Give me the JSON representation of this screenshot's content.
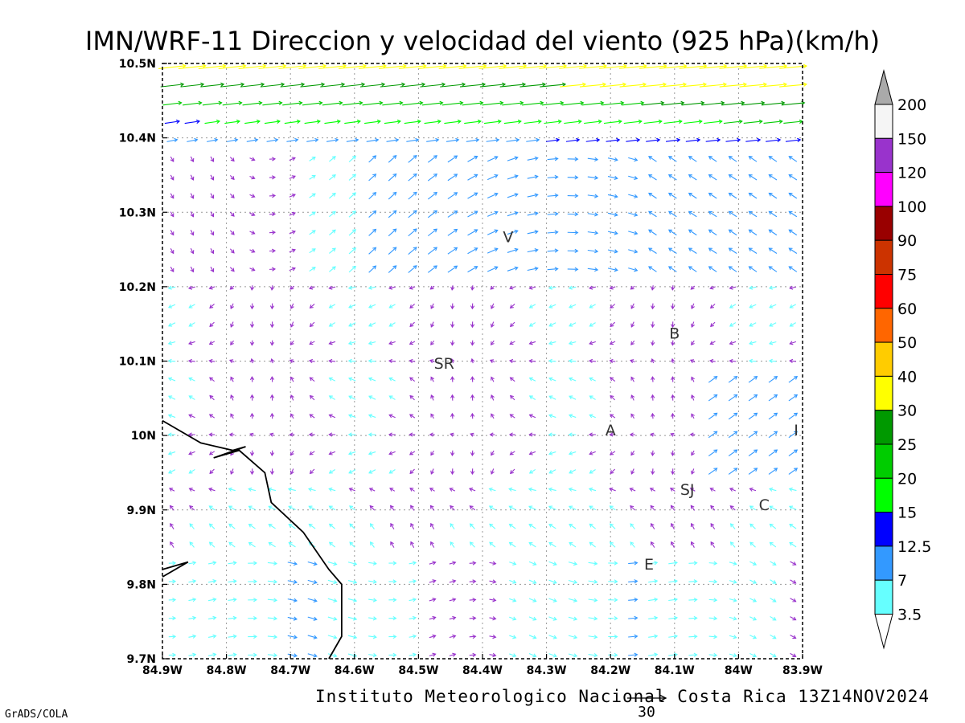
{
  "title": "IMN/WRF-11 Direccion y velocidad del viento (925 hPa)(km/h)",
  "footer": {
    "institution": "Instituto Meteorologico Nacional Costa Rica 13Z14NOV2024",
    "reference_vector_label": "30",
    "software": "GrADS/COLA"
  },
  "axes": {
    "x_ticks": [
      "84.9W",
      "84.8W",
      "84.7W",
      "84.6W",
      "84.5W",
      "84.4W",
      "84.3W",
      "84.2W",
      "84.1W",
      "84W",
      "83.9W"
    ],
    "x_values": [
      -84.9,
      -84.8,
      -84.7,
      -84.6,
      -84.5,
      -84.4,
      -84.3,
      -84.2,
      -84.1,
      -84.0,
      -83.9
    ],
    "y_ticks": [
      "9.7N",
      "9.8N",
      "9.9N",
      "10N",
      "10.1N",
      "10.2N",
      "10.3N",
      "10.4N",
      "10.5N"
    ],
    "y_values": [
      9.7,
      9.8,
      9.9,
      10.0,
      10.1,
      10.2,
      10.3,
      10.4,
      10.5
    ],
    "lon_range": [
      -84.9,
      -83.9
    ],
    "lat_range": [
      9.7,
      10.5
    ],
    "grid": true
  },
  "colorbar": {
    "labels": [
      "3.5",
      "7",
      "12.5",
      "15",
      "20",
      "25",
      "30",
      "40",
      "50",
      "60",
      "75",
      "90",
      "100",
      "120",
      "150",
      "200"
    ],
    "colors": [
      "#66ffff",
      "#3399ff",
      "#0000ff",
      "#00ff00",
      "#00cc00",
      "#009900",
      "#ffff00",
      "#ffcc00",
      "#ff6600",
      "#ff0000",
      "#cc3300",
      "#990000",
      "#ff00ff",
      "#9933cc",
      "#f5f5f5",
      "#aaaaaa"
    ]
  },
  "stations": [
    {
      "label": "V",
      "lon": -84.36,
      "lat": 10.26
    },
    {
      "label": "SR",
      "lon": -84.46,
      "lat": 10.09
    },
    {
      "label": "B",
      "lon": -84.1,
      "lat": 10.13
    },
    {
      "label": "A",
      "lon": -84.2,
      "lat": 10.0
    },
    {
      "label": "SJ",
      "lon": -84.08,
      "lat": 9.92
    },
    {
      "label": "C",
      "lon": -83.96,
      "lat": 9.9
    },
    {
      "label": "E",
      "lon": -84.14,
      "lat": 9.82
    },
    {
      "label": "I",
      "lon": -83.91,
      "lat": 10.0
    }
  ],
  "coastline": [
    [
      -84.9,
      10.02
    ],
    [
      -84.84,
      9.99
    ],
    [
      -84.79,
      9.98
    ],
    [
      -84.77,
      9.985
    ],
    [
      -84.82,
      9.97
    ],
    [
      -84.78,
      9.98
    ],
    [
      -84.74,
      9.95
    ],
    [
      -84.73,
      9.91
    ],
    [
      -84.68,
      9.87
    ],
    [
      -84.64,
      9.82
    ],
    [
      -84.62,
      9.8
    ],
    [
      -84.62,
      9.73
    ],
    [
      -84.64,
      9.7
    ]
  ],
  "coastline2": [
    [
      -84.9,
      9.82
    ],
    [
      -84.86,
      9.83
    ],
    [
      -84.9,
      9.81
    ]
  ]
}
